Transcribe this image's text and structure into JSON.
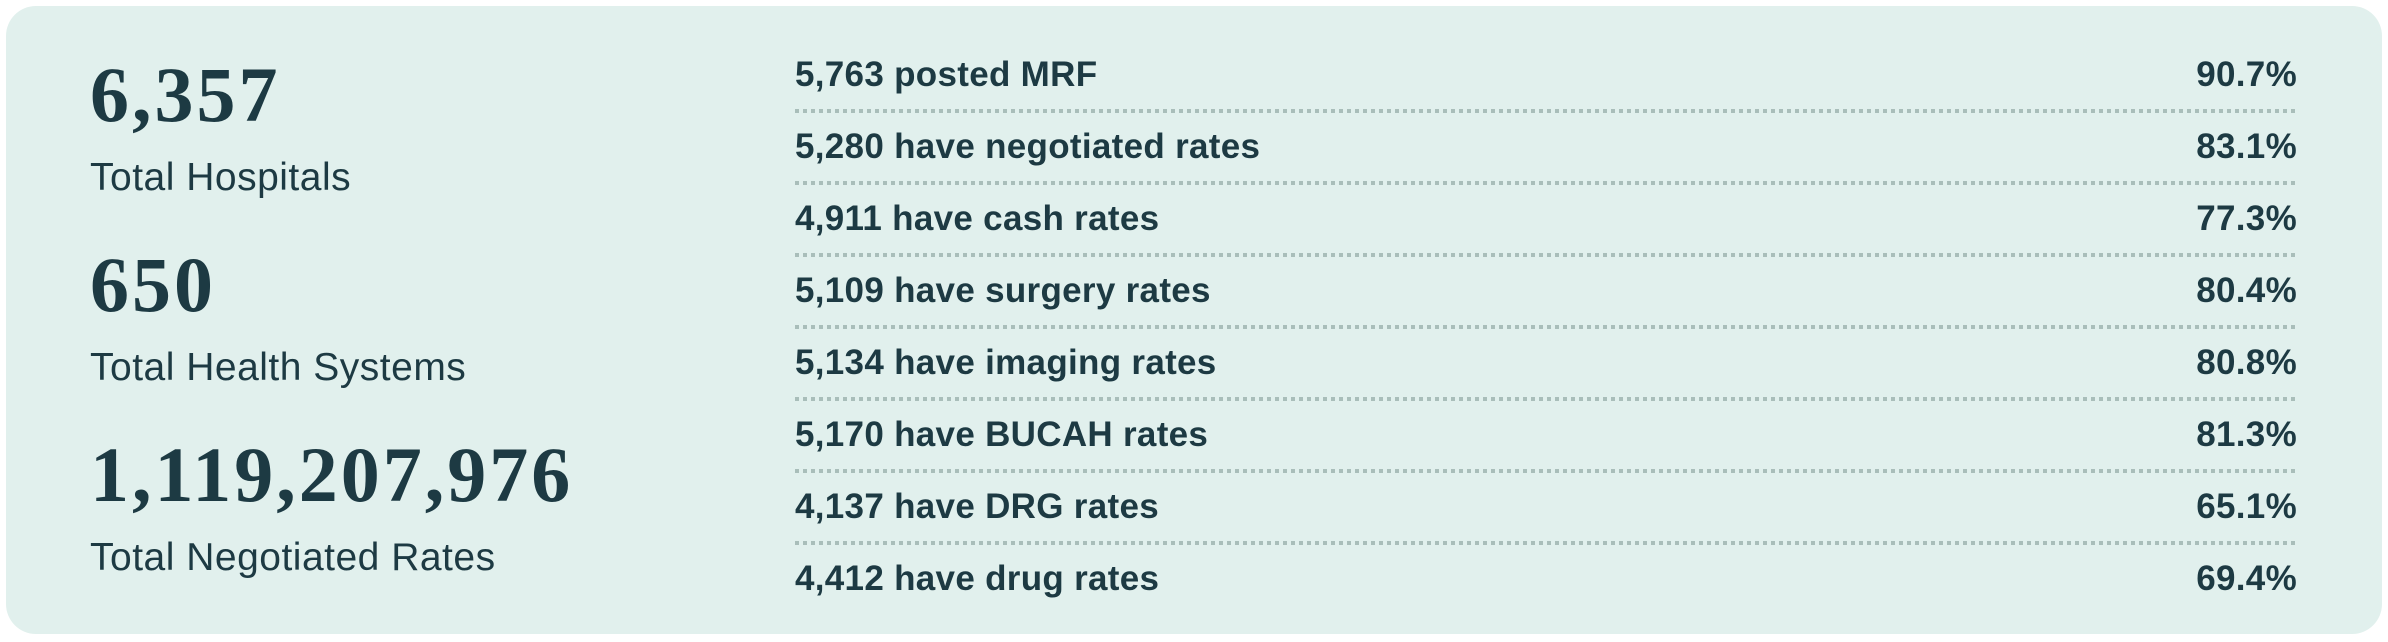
{
  "panel": {
    "summary_stats": [
      {
        "value": "6,357",
        "label": "Total Hospitals"
      },
      {
        "value": "650",
        "label": "Total Health Systems"
      },
      {
        "value": "1,119,207,976",
        "label": "Total Negotiated Rates"
      }
    ],
    "rate_stats": [
      {
        "label": "5,763 posted MRF",
        "percent": "90.7%"
      },
      {
        "label": "5,280 have negotiated rates",
        "percent": "83.1%"
      },
      {
        "label": "4,911 have cash rates",
        "percent": "77.3%"
      },
      {
        "label": "5,109 have surgery rates",
        "percent": "80.4%"
      },
      {
        "label": "5,134 have imaging rates",
        "percent": "80.8%"
      },
      {
        "label": "5,170 have BUCAH rates",
        "percent": "81.3%"
      },
      {
        "label": "4,137 have DRG rates",
        "percent": "65.1%"
      },
      {
        "label": "4,412 have drug rates",
        "percent": "69.4%"
      }
    ]
  },
  "colors": {
    "page_background": "#ffffff",
    "panel_background": "#e1f0ed",
    "text": "#1d3a43",
    "separator_dots": "#a9beba"
  }
}
